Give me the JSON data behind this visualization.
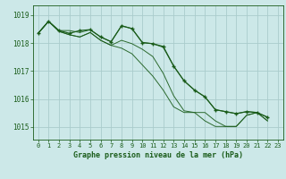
{
  "title": "Graphe pression niveau de la mer (hPa)",
  "bg_color": "#cce8e8",
  "grid_color": "#aacccc",
  "line_color": "#1a5c1a",
  "x_ticks": [
    0,
    1,
    2,
    3,
    4,
    5,
    6,
    7,
    8,
    9,
    10,
    11,
    12,
    13,
    14,
    15,
    16,
    17,
    18,
    19,
    20,
    21,
    22,
    23
  ],
  "y_ticks": [
    1015,
    1016,
    1017,
    1018,
    1019
  ],
  "ylim": [
    1014.55,
    1019.35
  ],
  "xlim": [
    -0.5,
    23.5
  ],
  "series": [
    [
      1018.35,
      1018.78,
      1018.45,
      1018.45,
      1018.38,
      1018.48,
      1018.22,
      1018.05,
      1018.62,
      1018.52,
      1018.02,
      1017.98,
      1017.85,
      1017.18,
      1016.65,
      1016.32,
      1016.08,
      1015.62,
      1015.55,
      1015.48,
      1015.55,
      1015.52,
      1015.35
    ],
    [
      1018.35,
      1018.78,
      1018.42,
      1018.3,
      1018.22,
      1018.38,
      1018.1,
      1017.92,
      1018.1,
      1017.98,
      1017.78,
      1017.52,
      1016.92,
      1016.12,
      1015.58,
      1015.52,
      1015.52,
      1015.22,
      1015.02,
      1015.02,
      1015.42,
      1015.52,
      1015.22
    ],
    [
      1018.35,
      1018.78,
      1018.42,
      1018.3,
      1018.22,
      1018.38,
      1018.1,
      1017.92,
      1017.82,
      1017.62,
      1017.22,
      1016.82,
      1016.32,
      1015.72,
      1015.52,
      1015.52,
      1015.22,
      1015.02,
      1015.02,
      1015.02,
      1015.42,
      1015.52,
      1015.22
    ]
  ],
  "main_series": [
    1018.35,
    1018.78,
    1018.45,
    1018.35,
    1018.45,
    1018.48,
    1018.22,
    1018.05,
    1018.62,
    1018.52,
    1018.02,
    1017.98,
    1017.88,
    1017.18,
    1016.65,
    1016.32,
    1016.08,
    1015.62,
    1015.55,
    1015.48,
    1015.55,
    1015.52,
    1015.35
  ],
  "font_family": "monospace"
}
